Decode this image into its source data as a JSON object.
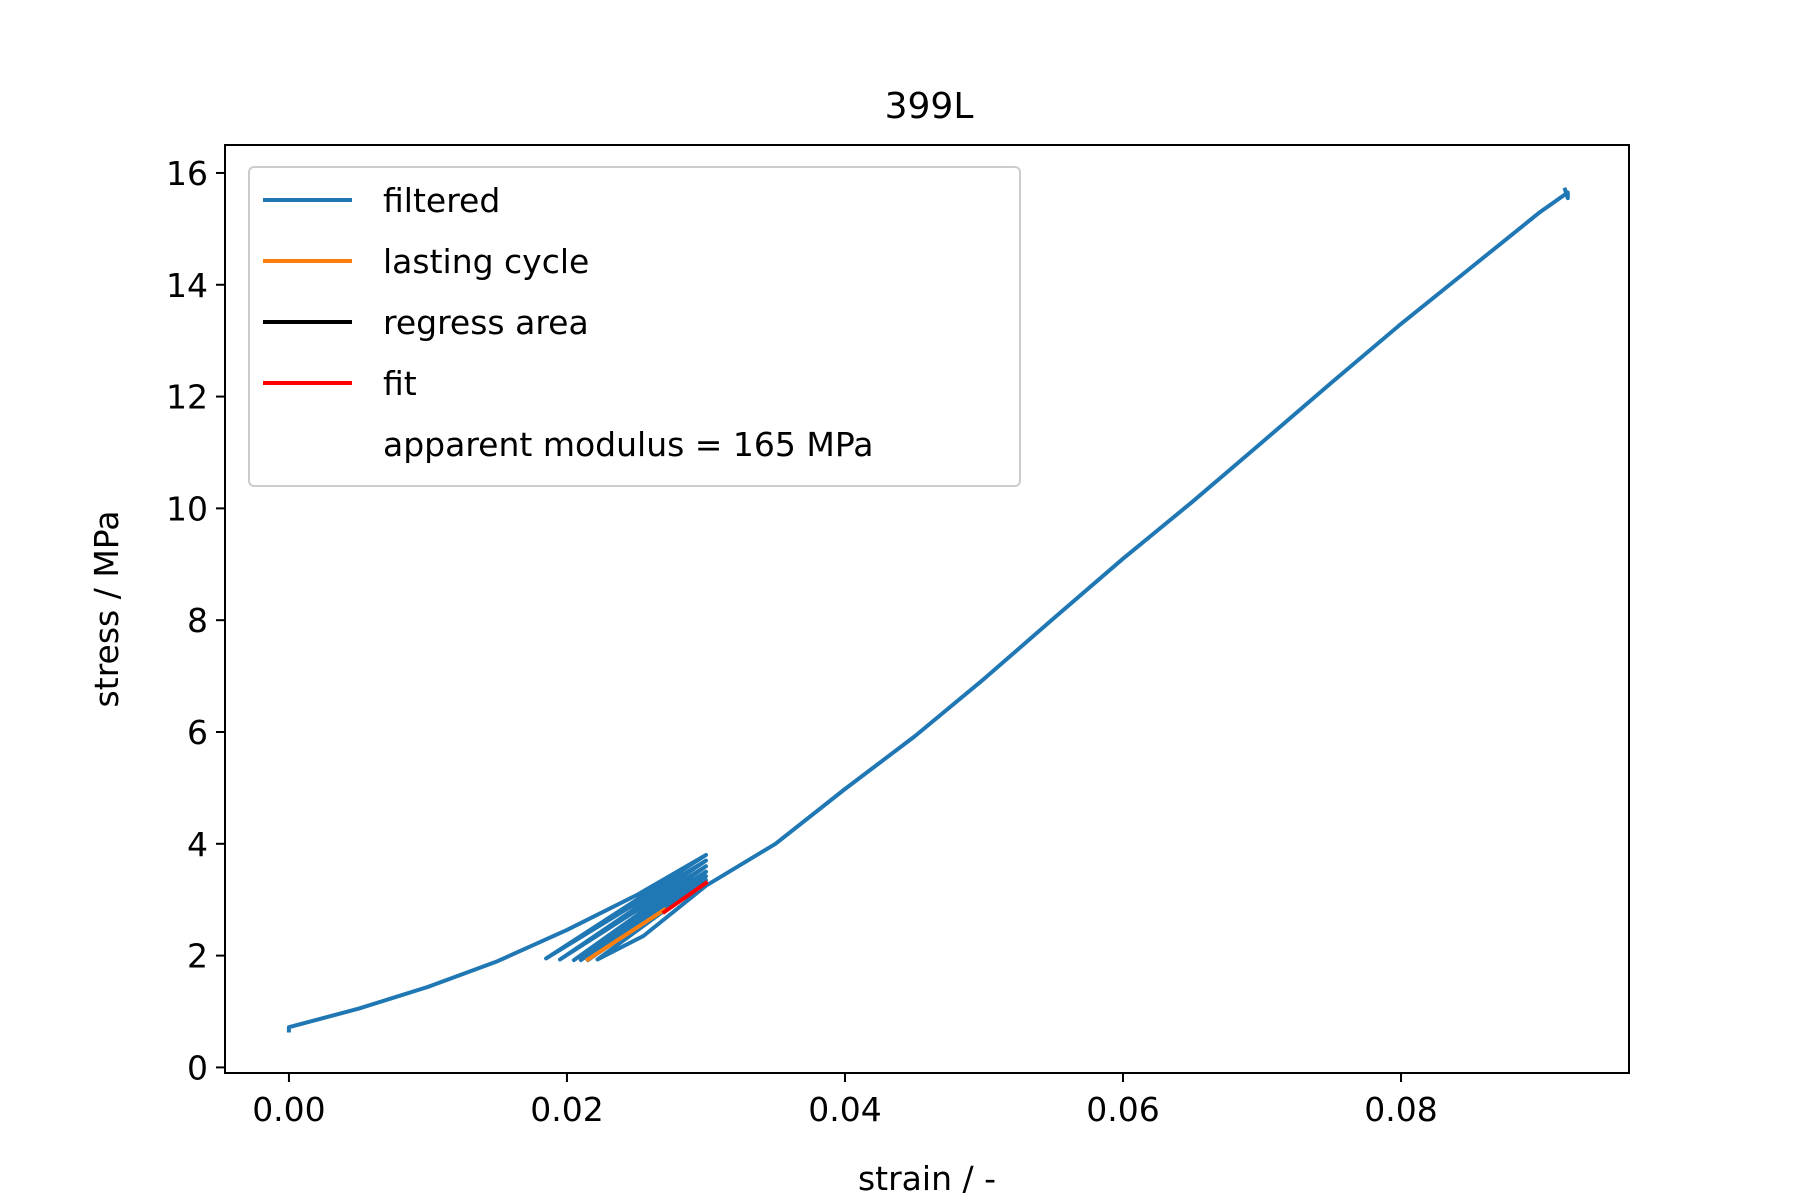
{
  "chart_data": {
    "type": "line",
    "title": "399L",
    "xlabel": "strain / -",
    "ylabel": "stress / MPa",
    "xlim": [
      -0.0046,
      0.0964
    ],
    "ylim": [
      -0.1,
      16.5
    ],
    "xticks": [
      0.0,
      0.02,
      0.04,
      0.06,
      0.08
    ],
    "yticks": [
      0,
      2,
      4,
      6,
      8,
      10,
      12,
      14,
      16
    ],
    "xtick_labels": [
      "0.00",
      "0.02",
      "0.04",
      "0.06",
      "0.08"
    ],
    "ytick_labels": [
      "0",
      "2",
      "4",
      "6",
      "8",
      "10",
      "12",
      "14",
      "16"
    ],
    "grid": false,
    "legend_position": "top-left",
    "series": [
      {
        "name": "filtered",
        "color": "#1f77b4",
        "points": [
          [
            0.0,
            0.66
          ],
          [
            0.0,
            0.72
          ],
          [
            0.005,
            1.05
          ],
          [
            0.01,
            1.44
          ],
          [
            0.015,
            1.9
          ],
          [
            0.02,
            2.46
          ],
          [
            0.025,
            3.08
          ],
          [
            0.03,
            3.8
          ],
          [
            0.0185,
            1.95
          ],
          [
            0.03,
            3.7
          ],
          [
            0.0195,
            1.93
          ],
          [
            0.03,
            3.6
          ],
          [
            0.0205,
            1.92
          ],
          [
            0.03,
            3.5
          ],
          [
            0.021,
            1.92
          ],
          [
            0.03,
            3.42
          ],
          [
            0.0215,
            1.92
          ],
          [
            0.03,
            3.35
          ],
          [
            0.0222,
            1.93
          ],
          [
            0.0255,
            2.35
          ],
          [
            0.03,
            3.25
          ],
          [
            0.035,
            4.0
          ],
          [
            0.04,
            4.98
          ],
          [
            0.045,
            5.92
          ],
          [
            0.05,
            6.95
          ],
          [
            0.055,
            8.03
          ],
          [
            0.06,
            9.1
          ],
          [
            0.065,
            10.12
          ],
          [
            0.07,
            11.18
          ],
          [
            0.075,
            12.25
          ],
          [
            0.08,
            13.3
          ],
          [
            0.085,
            14.3
          ],
          [
            0.09,
            15.3
          ],
          [
            0.092,
            15.65
          ],
          [
            0.092,
            15.55
          ],
          [
            0.0918,
            15.7
          ]
        ]
      },
      {
        "name": "lasting cycle",
        "color": "#ff7f0e",
        "points": [
          [
            0.0215,
            1.93
          ],
          [
            0.027,
            2.82
          ]
        ]
      },
      {
        "name": "regress area",
        "color": "#000000",
        "points": []
      },
      {
        "name": "fit",
        "color": "#ff0000",
        "points": [
          [
            0.027,
            2.78
          ],
          [
            0.03,
            3.3
          ]
        ]
      }
    ],
    "legend_entries": [
      {
        "label": "filtered",
        "color": "#1f77b4"
      },
      {
        "label": "lasting cycle",
        "color": "#ff7f0e"
      },
      {
        "label": "regress area",
        "color": "#000000"
      },
      {
        "label": "fit",
        "color": "#ff0000"
      },
      {
        "label": "apparent modulus = 165 MPa",
        "color": ""
      }
    ]
  }
}
